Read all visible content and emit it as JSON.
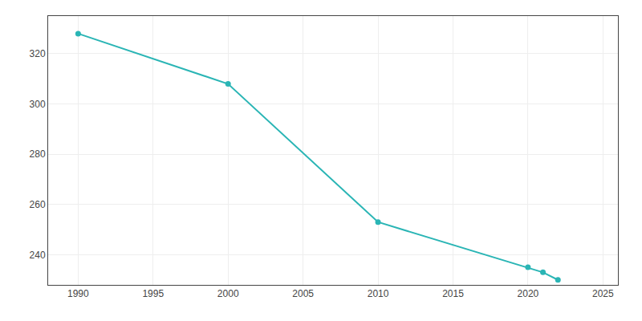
{
  "chart_data": {
    "type": "line",
    "x": [
      1990,
      2000,
      2010,
      2020,
      2021,
      2022
    ],
    "values": [
      328,
      308,
      253,
      235,
      233,
      230
    ],
    "color": "#2ab5b5",
    "marker": "circle",
    "xlim": [
      1988,
      2026
    ],
    "ylim": [
      228,
      335
    ],
    "xticks": [
      1990,
      1995,
      2000,
      2005,
      2010,
      2015,
      2020,
      2025
    ],
    "yticks": [
      240,
      260,
      280,
      300,
      320
    ],
    "grid": true
  }
}
